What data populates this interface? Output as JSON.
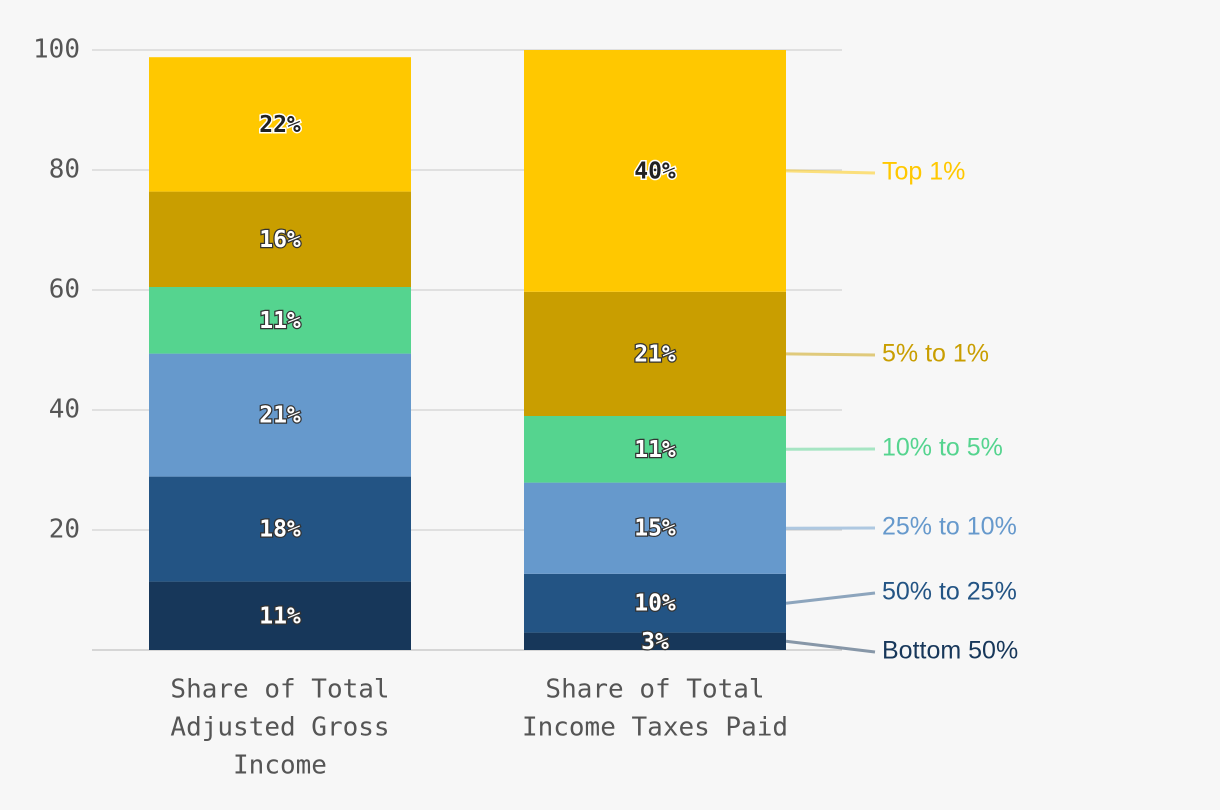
{
  "chart_data": {
    "type": "bar",
    "stacked": true,
    "orientation": "vertical",
    "categories": [
      [
        "Share of Total",
        "Adjusted Gross",
        "Income"
      ],
      [
        "Share of Total",
        "Income Taxes Paid"
      ]
    ],
    "series": [
      {
        "name": "Bottom 50%",
        "values": [
          11.4,
          2.9
        ],
        "labels": [
          "11%",
          "3%"
        ],
        "color": "#17375a"
      },
      {
        "name": "50% to 25%",
        "values": [
          17.5,
          9.8
        ],
        "labels": [
          "18%",
          "10%"
        ],
        "color": "#235484"
      },
      {
        "name": "25% to 10%",
        "values": [
          20.5,
          15.2
        ],
        "labels": [
          "21%",
          "15%"
        ],
        "color": "#6699cc"
      },
      {
        "name": "10% to 5%",
        "values": [
          11.1,
          11.1
        ],
        "labels": [
          "11%",
          "11%"
        ],
        "color": "#55d48f"
      },
      {
        "name": "5% to 1%",
        "values": [
          15.9,
          20.7
        ],
        "labels": [
          "16%",
          "21%"
        ],
        "color": "#c99e00"
      },
      {
        "name": "Top 1%",
        "values": [
          22.4,
          40.3
        ],
        "labels": [
          "22%",
          "40%"
        ],
        "color": "#ffc800"
      }
    ],
    "yticks": [
      20,
      40,
      60,
      80,
      100
    ],
    "ylim": [
      0,
      100
    ],
    "grid": true,
    "legend": "right, direct labels with leader lines"
  }
}
